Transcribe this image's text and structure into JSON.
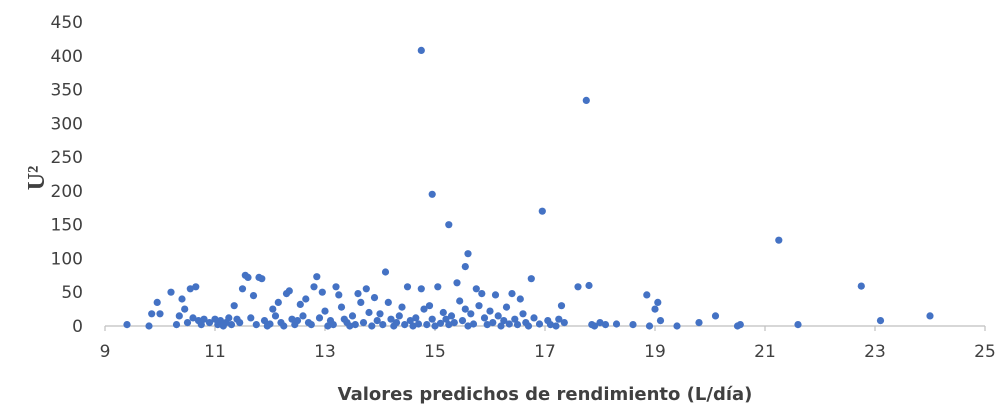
{
  "chart_data": {
    "type": "scatter",
    "title": "",
    "xlabel": "Valores predichos de rendimiento (L/día)",
    "ylabel": "U²",
    "xlim": [
      9,
      25
    ],
    "ylim": [
      0,
      450
    ],
    "xticks": [
      9,
      11,
      13,
      15,
      17,
      19,
      21,
      23,
      25
    ],
    "yticks": [
      0,
      50,
      100,
      150,
      200,
      250,
      300,
      350,
      400,
      450
    ],
    "grid": false,
    "legend": "none",
    "marker_color": "#4472c4",
    "axis_color": "#bfbfbf",
    "series": [
      {
        "points": [
          [
            9.4,
            2
          ],
          [
            9.8,
            0
          ],
          [
            9.85,
            18
          ],
          [
            9.95,
            35
          ],
          [
            10.0,
            18
          ],
          [
            10.2,
            50
          ],
          [
            10.3,
            2
          ],
          [
            10.35,
            15
          ],
          [
            10.4,
            40
          ],
          [
            10.45,
            25
          ],
          [
            10.5,
            5
          ],
          [
            10.55,
            55
          ],
          [
            10.6,
            12
          ],
          [
            10.65,
            58
          ],
          [
            10.7,
            8
          ],
          [
            10.75,
            2
          ],
          [
            10.8,
            10
          ],
          [
            10.9,
            5
          ],
          [
            11.0,
            10
          ],
          [
            11.05,
            2
          ],
          [
            11.1,
            8
          ],
          [
            11.15,
            0
          ],
          [
            11.2,
            5
          ],
          [
            11.25,
            12
          ],
          [
            11.3,
            2
          ],
          [
            11.35,
            30
          ],
          [
            11.4,
            10
          ],
          [
            11.45,
            5
          ],
          [
            11.5,
            55
          ],
          [
            11.55,
            75
          ],
          [
            11.6,
            72
          ],
          [
            11.65,
            12
          ],
          [
            11.7,
            45
          ],
          [
            11.75,
            2
          ],
          [
            11.8,
            72
          ],
          [
            11.85,
            70
          ],
          [
            11.9,
            8
          ],
          [
            11.95,
            0
          ],
          [
            12.0,
            3
          ],
          [
            12.05,
            25
          ],
          [
            12.1,
            15
          ],
          [
            12.15,
            35
          ],
          [
            12.2,
            5
          ],
          [
            12.25,
            0
          ],
          [
            12.3,
            48
          ],
          [
            12.35,
            52
          ],
          [
            12.4,
            10
          ],
          [
            12.45,
            2
          ],
          [
            12.5,
            8
          ],
          [
            12.55,
            32
          ],
          [
            12.6,
            15
          ],
          [
            12.65,
            40
          ],
          [
            12.7,
            5
          ],
          [
            12.75,
            2
          ],
          [
            12.8,
            58
          ],
          [
            12.85,
            73
          ],
          [
            12.9,
            12
          ],
          [
            12.95,
            50
          ],
          [
            13.0,
            22
          ],
          [
            13.05,
            0
          ],
          [
            13.1,
            8
          ],
          [
            13.15,
            2
          ],
          [
            13.2,
            58
          ],
          [
            13.25,
            46
          ],
          [
            13.3,
            28
          ],
          [
            13.35,
            10
          ],
          [
            13.4,
            5
          ],
          [
            13.45,
            0
          ],
          [
            13.5,
            15
          ],
          [
            13.55,
            2
          ],
          [
            13.6,
            48
          ],
          [
            13.65,
            35
          ],
          [
            13.7,
            5
          ],
          [
            13.75,
            55
          ],
          [
            13.8,
            20
          ],
          [
            13.85,
            0
          ],
          [
            13.9,
            42
          ],
          [
            13.95,
            8
          ],
          [
            14.0,
            18
          ],
          [
            14.05,
            2
          ],
          [
            14.1,
            80
          ],
          [
            14.15,
            35
          ],
          [
            14.2,
            10
          ],
          [
            14.25,
            0
          ],
          [
            14.3,
            5
          ],
          [
            14.35,
            15
          ],
          [
            14.4,
            28
          ],
          [
            14.45,
            2
          ],
          [
            14.5,
            58
          ],
          [
            14.55,
            8
          ],
          [
            14.6,
            0
          ],
          [
            14.65,
            12
          ],
          [
            14.7,
            3
          ],
          [
            14.75,
            55
          ],
          [
            14.8,
            25
          ],
          [
            14.85,
            2
          ],
          [
            14.9,
            30
          ],
          [
            14.95,
            10
          ],
          [
            14.75,
            408
          ],
          [
            15.0,
            0
          ],
          [
            15.05,
            58
          ],
          [
            15.1,
            4
          ],
          [
            15.15,
            20
          ],
          [
            15.2,
            10
          ],
          [
            15.25,
            2
          ],
          [
            15.3,
            15
          ],
          [
            15.35,
            5
          ],
          [
            14.95,
            195
          ],
          [
            15.4,
            64
          ],
          [
            15.45,
            37
          ],
          [
            15.5,
            8
          ],
          [
            15.55,
            25
          ],
          [
            15.6,
            0
          ],
          [
            15.65,
            18
          ],
          [
            15.7,
            3
          ],
          [
            15.25,
            150
          ],
          [
            15.75,
            55
          ],
          [
            15.8,
            30
          ],
          [
            15.85,
            48
          ],
          [
            15.9,
            12
          ],
          [
            15.95,
            2
          ],
          [
            15.6,
            107
          ],
          [
            15.55,
            88
          ],
          [
            16.0,
            22
          ],
          [
            16.05,
            5
          ],
          [
            16.1,
            46
          ],
          [
            16.15,
            15
          ],
          [
            16.2,
            0
          ],
          [
            16.25,
            8
          ],
          [
            16.3,
            28
          ],
          [
            16.35,
            3
          ],
          [
            16.4,
            48
          ],
          [
            16.45,
            10
          ],
          [
            16.5,
            2
          ],
          [
            16.55,
            40
          ],
          [
            16.6,
            18
          ],
          [
            16.65,
            5
          ],
          [
            16.7,
            0
          ],
          [
            16.75,
            70
          ],
          [
            16.8,
            12
          ],
          [
            16.9,
            3
          ],
          [
            16.95,
            170
          ],
          [
            17.05,
            8
          ],
          [
            17.1,
            2
          ],
          [
            17.2,
            0
          ],
          [
            17.25,
            10
          ],
          [
            17.3,
            30
          ],
          [
            17.35,
            5
          ],
          [
            17.6,
            58
          ],
          [
            17.75,
            334
          ],
          [
            17.8,
            60
          ],
          [
            17.85,
            2
          ],
          [
            17.9,
            0
          ],
          [
            18.0,
            5
          ],
          [
            18.1,
            2
          ],
          [
            18.3,
            3
          ],
          [
            18.6,
            2
          ],
          [
            18.85,
            46
          ],
          [
            18.9,
            0
          ],
          [
            19.0,
            25
          ],
          [
            19.05,
            35
          ],
          [
            19.1,
            8
          ],
          [
            19.4,
            0
          ],
          [
            19.8,
            5
          ],
          [
            20.1,
            15
          ],
          [
            20.5,
            0
          ],
          [
            20.55,
            2
          ],
          [
            21.25,
            127
          ],
          [
            21.6,
            2
          ],
          [
            22.75,
            59
          ],
          [
            23.1,
            8
          ],
          [
            24.0,
            15
          ]
        ]
      }
    ]
  }
}
